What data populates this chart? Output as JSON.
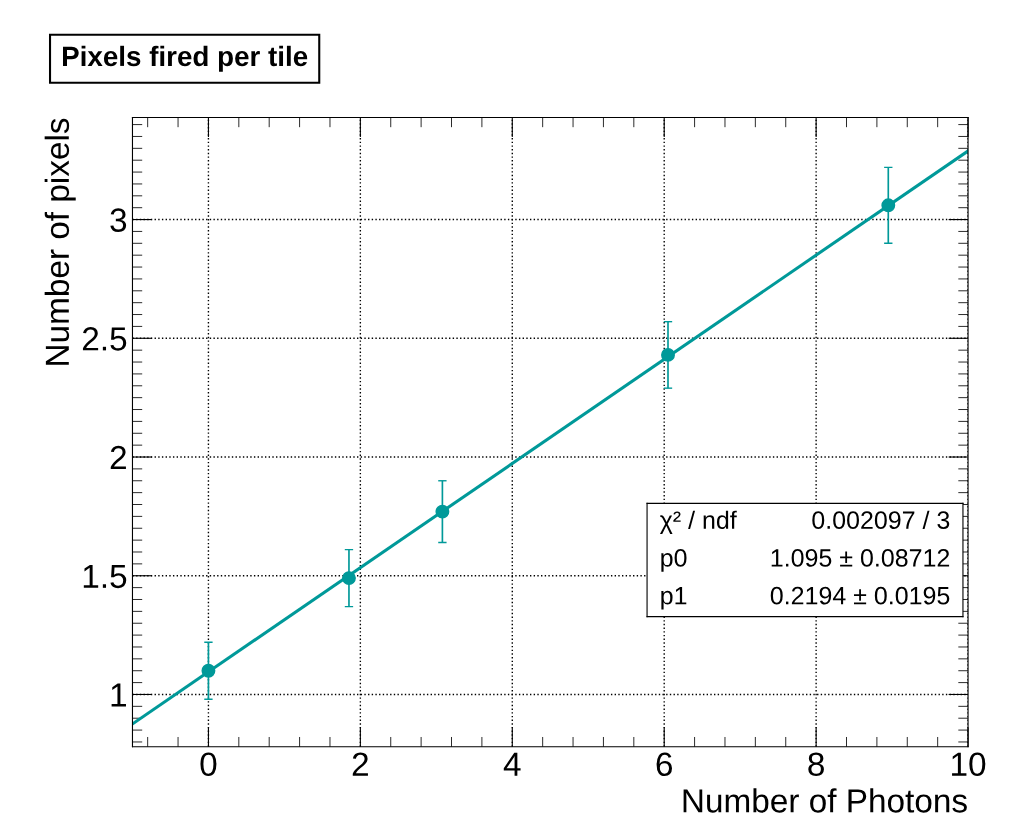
{
  "chart_data": {
    "type": "scatter",
    "title": "Pixels fired per tile",
    "xlabel": "Number of Photons",
    "ylabel": "Number of pixels",
    "x": [
      0,
      1.85,
      3.08,
      6.05,
      8.95
    ],
    "series": [
      {
        "color": "#009999",
        "values": [
          1.1,
          1.49,
          1.77,
          2.43,
          3.06
        ],
        "errors": [
          0.12,
          0.12,
          0.13,
          0.14,
          0.16
        ],
        "marker": "circle"
      },
      {
        "type": "line",
        "color": "#009999",
        "x": [
          -1,
          10
        ],
        "values": [
          0.876,
          3.289
        ],
        "marker": "none",
        "line_style": "solid"
      }
    ],
    "xlim": [
      -1,
      10
    ],
    "xticks": [
      0,
      2,
      4,
      6,
      8,
      10
    ],
    "ylim": [
      0.78,
      3.43
    ],
    "yticks": [
      1,
      1.5,
      2,
      2.5,
      3
    ],
    "grid": true,
    "legend": false,
    "annotations": [
      "χ² / ndf",
      "0.002097 / 3",
      "p0",
      "1.095 ± 0.08712",
      "p1",
      "0.2194 ± 0.0195"
    ]
  }
}
